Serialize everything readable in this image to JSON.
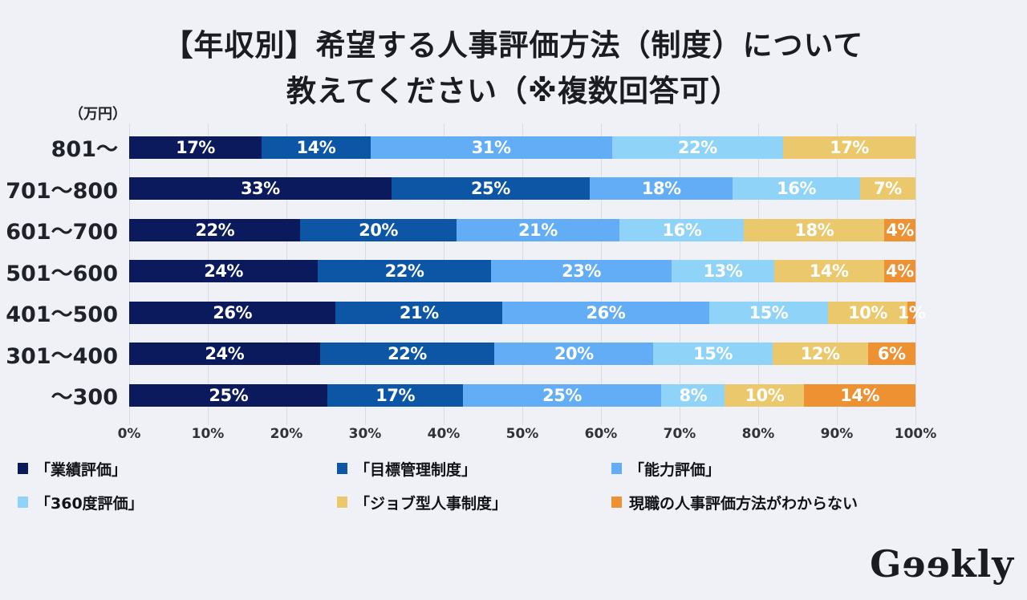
{
  "title_line1": "【年収別】希望する人事評価方法（制度）について",
  "title_line2": "教えてください（※複数回答可）",
  "unit_label": "（万円）",
  "logo_text": "Gɘɘkly",
  "background_color": "#eff1f6",
  "gridline_color": "#d8dbe3",
  "chart_data": {
    "type": "bar",
    "stacked": true,
    "orientation": "horizontal",
    "normalized_to_full_width": true,
    "categories": [
      "801〜",
      "701〜800",
      "601〜700",
      "501〜600",
      "401〜500",
      "301〜400",
      "〜300"
    ],
    "series": [
      {
        "name": "「業績評価」",
        "color": "#0a1a5c",
        "values": [
          17,
          33,
          22,
          24,
          26,
          24,
          25
        ]
      },
      {
        "name": "「目標管理制度」",
        "color": "#0d56a5",
        "values": [
          14,
          25,
          20,
          22,
          21,
          22,
          17
        ]
      },
      {
        "name": "「能力評価」",
        "color": "#63adf6",
        "values": [
          31,
          18,
          21,
          23,
          26,
          20,
          25
        ]
      },
      {
        "name": "「360度評価」",
        "color": "#8fd3f8",
        "values": [
          22,
          16,
          16,
          13,
          15,
          15,
          8
        ]
      },
      {
        "name": "「ジョブ型人事制度」",
        "color": "#ebc86b",
        "values": [
          17,
          7,
          18,
          14,
          10,
          12,
          10
        ]
      },
      {
        "name": "現職の人事評価方法がわからない",
        "color": "#ee9133",
        "values": [
          0,
          0,
          4,
          4,
          1,
          6,
          14
        ]
      }
    ],
    "value_suffix": "%",
    "x_ticks": [
      "0%",
      "10%",
      "20%",
      "30%",
      "40%",
      "50%",
      "60%",
      "70%",
      "80%",
      "90%",
      "100%"
    ],
    "xlim": [
      0,
      100
    ],
    "grid": true,
    "legend_position": "bottom"
  }
}
